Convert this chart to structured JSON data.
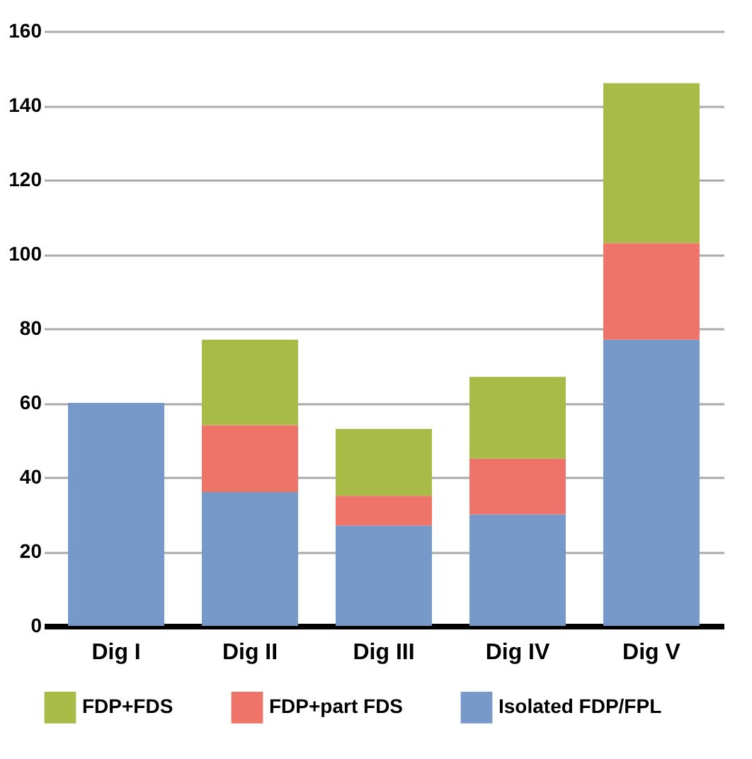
{
  "chart_data": {
    "type": "bar",
    "stacked": true,
    "categories": [
      "Dig I",
      "Dig II",
      "Dig III",
      "Dig IV",
      "Dig V"
    ],
    "series": [
      {
        "name": "Isolated FDP/FPL",
        "color": "#7799c9",
        "values": [
          60,
          36,
          27,
          30,
          77
        ]
      },
      {
        "name": "FDP+part FDS",
        "color": "#ee7368",
        "values": [
          null,
          18,
          8,
          15,
          26
        ]
      },
      {
        "name": "FDP+FDS",
        "color": "#a9bb47",
        "values": [
          null,
          23,
          18,
          22,
          43
        ]
      }
    ],
    "ylim": [
      0,
      160
    ],
    "yticks": [
      0,
      20,
      40,
      60,
      80,
      100,
      120,
      140,
      160
    ],
    "grid": "y",
    "legend": "bottom"
  }
}
